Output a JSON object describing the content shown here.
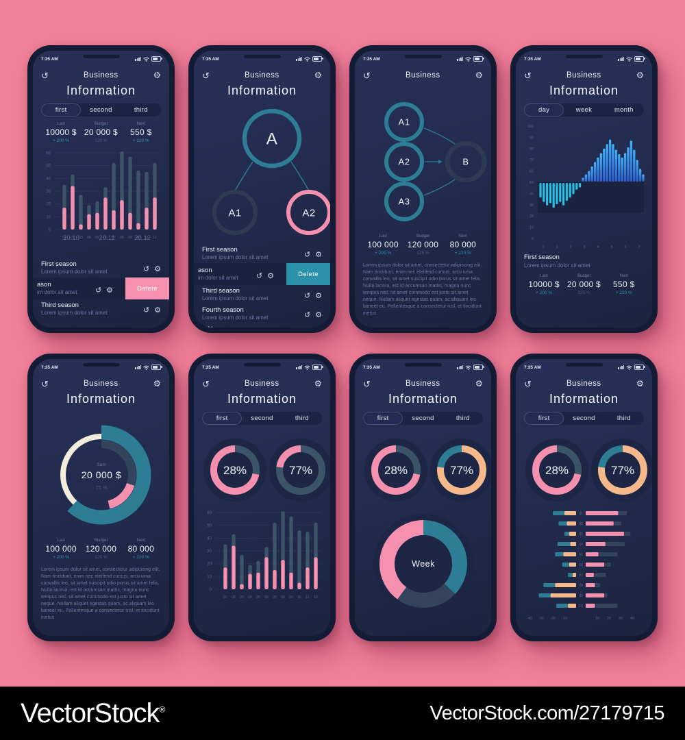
{
  "watermark": {
    "brand": "VectorStock",
    "reg": "®",
    "url": "VectorStock.com/27179715"
  },
  "shared": {
    "time": "7:35 AM",
    "app_title": "Business",
    "delete_label": "Delete",
    "paragraph": "Lorem ipsum dolor sit amet, consectetur adipiscing elit. Nam tincidunt, enim nec eleifend cursus, arcu urna convallis leo, sit amet suscipit odio purus sit amet felis. Nulla lacinia, est id accumsan mattis, magna nunc tempus nisl, sit amet commodo est justo sit amet neque. Nullam aliquet egestas quam, ac aliquam leo laoreet eu. Pellentesque a consectetur nisl, et tincidunt metus",
    "icons": {
      "history": "↺",
      "gear": "⚙"
    }
  },
  "colors": {
    "background": "#f07f99",
    "frame": "#141b34",
    "screen": "#232c4f",
    "slate": "#3c5468",
    "slate2": "#33445c",
    "ring_dark": "#2c3a52",
    "pink": "#f591af",
    "teal": "#2d7d95",
    "cyan": "#27c0e4",
    "blue_top": "#41b2fa",
    "blue_bottom": "#2a5ccc",
    "cream": "#f2ecda",
    "peach": "#f6b98c",
    "accent": "#2d93b0",
    "dim": "#6d77a0",
    "dimmer": "#4c577f",
    "axis": "#596285",
    "delete_pink": "#f591af",
    "delete_teal": "#2b91aa",
    "backdrop": "#1d2645",
    "band": "#1a2340",
    "white": "#f4f6fc"
  },
  "diagrams": {
    "flow_a": {
      "nodes": {
        "a": "A",
        "a1": "A1",
        "a2": "A2"
      }
    },
    "flow_b": {
      "nodes": {
        "a1": "A1",
        "a2": "A2",
        "a3": "A3",
        "b": "B"
      }
    }
  },
  "chart_data": [
    {
      "id": "bars12",
      "type": "bar",
      "categories": [
        "01",
        "02",
        "03",
        "04",
        "05",
        "06",
        "07",
        "08",
        "09",
        "10",
        "11",
        "12"
      ],
      "series": [
        {
          "name": "total",
          "color": "slate",
          "values": [
            35,
            43,
            27,
            19,
            22,
            33,
            52,
            61,
            57,
            46,
            45,
            52
          ]
        },
        {
          "name": "season",
          "color": "pink",
          "values": [
            17,
            34,
            4,
            12,
            13,
            25,
            15,
            23,
            13,
            5,
            17,
            25
          ]
        }
      ],
      "ylim": [
        0,
        60
      ],
      "yticks": [
        60,
        50,
        40,
        30,
        20,
        10,
        0
      ],
      "overlay_labels": [
        "20.10",
        "20.11",
        "20.12"
      ]
    },
    {
      "id": "wave",
      "type": "bar",
      "ylim": [
        0,
        100
      ],
      "baseline": 50,
      "yticks": [
        100,
        90,
        80,
        70,
        60,
        50,
        40,
        30,
        20,
        10,
        0
      ],
      "xticks": [
        "0",
        "1",
        "2",
        "3",
        "4",
        "5",
        "6",
        "7"
      ],
      "lower_series": {
        "color": "cyan",
        "ends": [
          37,
          33,
          30,
          32,
          28,
          31,
          33,
          30,
          34,
          37,
          40,
          44,
          46
        ]
      },
      "upper_series": {
        "color": "blue",
        "tops": [
          54,
          57,
          60,
          64,
          68,
          72,
          76,
          80,
          84,
          88,
          84,
          79,
          75,
          72,
          76,
          81,
          87,
          79,
          70,
          62,
          57
        ]
      }
    },
    {
      "id": "hbars",
      "type": "bar",
      "orientation": "horizontal-diverging",
      "categories": [
        "01",
        "02",
        "03",
        "04",
        "05",
        "06",
        "07",
        "08",
        "09",
        "10"
      ],
      "xticks": [
        "-40",
        "-30",
        "-20",
        "-10",
        "10",
        "20",
        "30",
        "40"
      ],
      "series_order": [
        "teal",
        "peach",
        "pink",
        "slate2"
      ],
      "rows": [
        [
          10,
          10,
          28,
          7
        ],
        [
          7,
          8,
          24,
          6
        ],
        [
          4,
          6,
          33,
          5
        ],
        [
          11,
          5,
          17,
          16
        ],
        [
          7,
          11,
          11,
          16
        ],
        [
          6,
          6,
          16,
          5
        ],
        [
          4,
          3,
          7,
          10
        ],
        [
          10,
          18,
          8,
          4
        ],
        [
          10,
          22,
          16,
          2
        ],
        [
          10,
          7,
          8,
          19
        ]
      ]
    },
    {
      "id": "gauge28",
      "type": "pie",
      "label": "28%",
      "size": 96,
      "r": 31,
      "w": 10,
      "segments": [
        {
          "color": "slate",
          "from": 0,
          "to": 0.28
        },
        {
          "color": "pink",
          "from": 0.28,
          "to": 1
        }
      ]
    },
    {
      "id": "gauge77a",
      "type": "pie",
      "label": "77%",
      "size": 96,
      "r": 31,
      "w": 10,
      "segments": [
        {
          "color": "slate",
          "from": 0,
          "to": 0.77
        },
        {
          "color": "pink",
          "from": 0.77,
          "to": 1
        }
      ]
    },
    {
      "id": "gauge77b",
      "type": "pie",
      "label": "77%",
      "size": 96,
      "r": 31,
      "w": 10,
      "segments": [
        {
          "color": "peach",
          "from": 0,
          "to": 0.77
        },
        {
          "color": "teal",
          "from": 0.77,
          "to": 1
        }
      ]
    },
    {
      "id": "donut_sum",
      "type": "pie",
      "size": 170,
      "center": {
        "top": "Sum",
        "value": "20 000 $",
        "bottom": "75 %"
      },
      "rings": [
        {
          "r": 62,
          "w": 21,
          "segments": [
            {
              "color": "teal",
              "from": 0,
              "to": 0.62
            }
          ]
        },
        {
          "r": 56,
          "w": 8,
          "segments": [
            {
              "color": "cream",
              "from": 0.62,
              "to": 1
            }
          ]
        },
        {
          "r": 45,
          "w": 12,
          "segments": [
            {
              "color": "slate2",
              "from": 0,
              "to": 0.3
            },
            {
              "color": "pink",
              "from": 0.3,
              "to": 0.46
            }
          ]
        }
      ]
    },
    {
      "id": "donut_week",
      "type": "pie",
      "size": 150,
      "backdrop": true,
      "center": {
        "value": "Week"
      },
      "rings": [
        {
          "r": 53,
          "w": 22,
          "segments": [
            {
              "color": "teal",
              "from": 0,
              "to": 0.37
            },
            {
              "color": "slate2",
              "from": 0.37,
              "to": 0.6
            },
            {
              "color": "pink",
              "from": 0.6,
              "to": 1
            }
          ]
        }
      ]
    }
  ],
  "phones": [
    {
      "page_title": "Information",
      "sections": [
        "tabs",
        "stats",
        "chart",
        "list"
      ],
      "tabs": {
        "items": [
          "first",
          "second",
          "third"
        ],
        "selected": 0
      },
      "stats": [
        {
          "label": "Last",
          "value": "10000 $",
          "delta": "+ 200 %",
          "accent": true
        },
        {
          "label": "Budget",
          "value": "20 000 $",
          "delta": "125 %",
          "accent": false
        },
        {
          "label": "Next",
          "value": "550 $",
          "delta": "+ 220 %",
          "accent": true
        }
      ],
      "chart": {
        "id": "bars12",
        "overlay": true
      },
      "list": [
        {
          "title": "First season",
          "subtitle": "Lorem ipsum dolor sit amet"
        },
        {
          "title": "ason",
          "subtitle": "im dolor sit amet",
          "slid": true,
          "delete_color": "pink"
        },
        {
          "title": "Third season",
          "subtitle": "Lorem ipsum dolor sit amet"
        }
      ]
    },
    {
      "page_title": "Information",
      "sections": [
        "diagram",
        "list"
      ],
      "diagram": "flow_a",
      "list": [
        {
          "title": "First season",
          "subtitle": "Lorem ipsum dolor sit amet"
        },
        {
          "title": "ason",
          "subtitle": "im dolor sit amet",
          "slid": true,
          "delete_color": "teal"
        },
        {
          "title": "Third season",
          "subtitle": "Lorem ipsum dolor sit amet"
        },
        {
          "title": "Fourth season",
          "subtitle": "Lorem ipsum dolor sit amet"
        },
        {
          "title": "Fifth season",
          "subtitle": "Lorem ipsum dolor sit amet"
        }
      ]
    },
    {
      "sections": [
        "diagram",
        "stats",
        "paragraph"
      ],
      "diagram": "flow_b",
      "stats": [
        {
          "label": "Last",
          "value": "100 000",
          "delta": "+ 200 %",
          "accent": true
        },
        {
          "label": "Budget",
          "value": "120 000",
          "delta": "125 %",
          "accent": false
        },
        {
          "label": "Next",
          "value": "80 000",
          "delta": "+ 220 %",
          "accent": true
        }
      ],
      "paragraph": true
    },
    {
      "page_title": "Information",
      "sections": [
        "tabs",
        "chart",
        "season",
        "stats"
      ],
      "tabs": {
        "items": [
          "day",
          "week",
          "month"
        ],
        "selected": 0
      },
      "chart": {
        "id": "wave"
      },
      "season": {
        "title": "First season",
        "subtitle": "Lorem ipsum dolor sit amet"
      },
      "stats": [
        {
          "label": "Last",
          "value": "10000 $",
          "delta": "+ 200 %",
          "accent": true
        },
        {
          "label": "Budget",
          "value": "20 000 $",
          "delta": "125 %",
          "accent": false
        },
        {
          "label": "Next",
          "value": "550 $",
          "delta": "+ 220 %",
          "accent": true
        }
      ]
    },
    {
      "page_title": "Information",
      "sections": [
        "donut",
        "stats",
        "paragraph"
      ],
      "donut": "donut_sum",
      "stats": [
        {
          "label": "Last",
          "value": "100 000",
          "delta": "+ 200 %",
          "accent": true
        },
        {
          "label": "Budget",
          "value": "120 000",
          "delta": "125 %",
          "accent": false
        },
        {
          "label": "Next",
          "value": "80 000",
          "delta": "+ 220 %",
          "accent": true
        }
      ],
      "paragraph": true
    },
    {
      "page_title": "Information",
      "sections": [
        "tabs",
        "gauges",
        "chart"
      ],
      "tabs": {
        "items": [
          "first",
          "second",
          "third"
        ],
        "selected": 0
      },
      "gauges": [
        "gauge28",
        "gauge77a"
      ],
      "chart": {
        "id": "bars12",
        "overlay": false
      }
    },
    {
      "page_title": "Information",
      "sections": [
        "tabs",
        "gauges",
        "donut"
      ],
      "tabs": {
        "items": [
          "first",
          "second",
          "third"
        ],
        "selected": 0
      },
      "gauges": [
        "gauge28",
        "gauge77b"
      ],
      "donut": "donut_week"
    },
    {
      "page_title": "Information",
      "sections": [
        "tabs",
        "gauges",
        "chart"
      ],
      "tabs": {
        "items": [
          "first",
          "second",
          "third"
        ],
        "selected": 0
      },
      "gauges": [
        "gauge28",
        "gauge77b"
      ],
      "chart": {
        "id": "hbars"
      }
    }
  ]
}
